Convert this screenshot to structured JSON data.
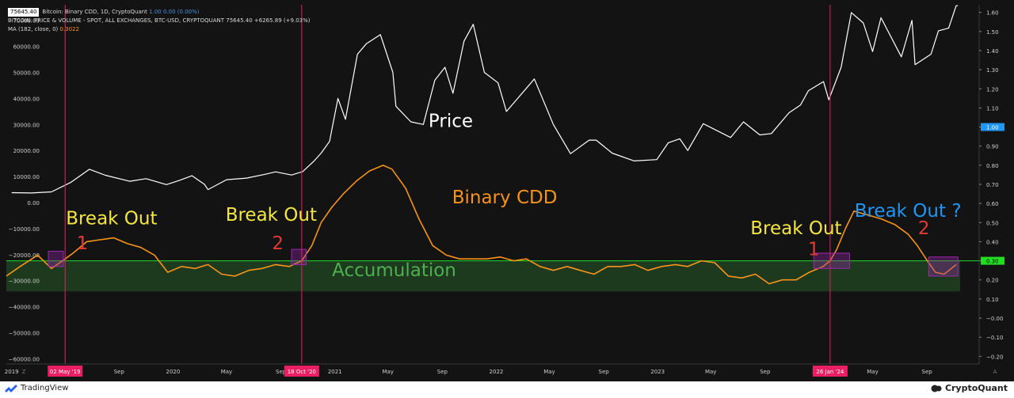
{
  "header": {
    "current_price": "75645.40",
    "line1": "Bitcoin: Binary CDD, 1D, CryptoQuant",
    "line1_vals": "1.00  0.00 (0.00%)",
    "line2": "BITCOIN: PRICE & VOLUME - SPOT, ALL EXCHANGES, BTC-USD, CRYPTOQUANT",
    "line2_vals": "75645.40  +6265.89 (+9.03%)",
    "line3": "MA (182, close, 0)",
    "line3_vals": "0.3022"
  },
  "footer": {
    "left_brand": "TradingView",
    "right_brand": "CryptoQuant",
    "left_corner": "Z",
    "right_corner": "A"
  },
  "colors": {
    "background": "#131313",
    "price_line": "#ffffff",
    "cdd_line": "#f7931a",
    "threshold_line": "#22dd22",
    "accumulation_zone": "#1e3a1e",
    "event_line": "#e91e63",
    "breakout_box": "#9c27b0",
    "yellow_text": "#f5e642",
    "red_text": "#e53935",
    "blue_text": "#2196f3",
    "green_text": "#4caf50"
  },
  "chart_data": {
    "type": "line",
    "left_axis": {
      "ticks": [
        "70000.00",
        "60000.00",
        "50000.00",
        "40000.00",
        "30000.00",
        "20000.00",
        "10000.00",
        "0.00",
        "−10000.00",
        "−20000.00",
        "−30000.00",
        "−40000.00",
        "−50000.00",
        "−60000.00"
      ],
      "ylim": [
        -62000,
        76000
      ]
    },
    "right_axis": {
      "ticks": [
        "1.60",
        "1.50",
        "1.40",
        "1.30",
        "1.20",
        "1.10",
        "1.00",
        "0.90",
        "0.80",
        "0.70",
        "0.60",
        "0.50",
        "0.40",
        "0.30",
        "0.20",
        "0.10",
        "−0.00",
        "−0.10",
        "−0.20"
      ],
      "highlight_current": "1.00",
      "highlight_threshold": "0.30",
      "ylim": [
        -0.24,
        1.64
      ]
    },
    "x_axis": {
      "labels": [
        "2019",
        "May",
        "Sep",
        "2020",
        "May",
        "Sep",
        "2021",
        "May",
        "Sep",
        "2022",
        "May",
        "Sep",
        "2023",
        "May",
        "Sep",
        "2024",
        "May",
        "Sep"
      ],
      "dates": [
        "2019-01-01",
        "2019-05-01",
        "2019-09-01",
        "2020-01-01",
        "2020-05-01",
        "2020-09-01",
        "2021-01-01",
        "2021-05-01",
        "2021-09-01",
        "2022-01-01",
        "2022-05-01",
        "2022-09-01",
        "2023-01-01",
        "2023-05-01",
        "2023-09-01",
        "2024-01-01",
        "2024-05-01",
        "2024-09-01"
      ],
      "range": [
        "2018-12-20",
        "2024-12-28"
      ]
    },
    "event_markers": [
      {
        "label": "02 May '19",
        "date": "2019-05-02"
      },
      {
        "label": "18 Oct '20",
        "date": "2020-10-18"
      },
      {
        "label": "26 Jan '24",
        "date": "2024-01-26"
      }
    ],
    "threshold": {
      "value": 0.3,
      "label": "0.30"
    },
    "accumulation_zone": {
      "from": 0.14,
      "to": 0.3,
      "start": "2018-12-20",
      "end": "2024-11-15"
    },
    "series": [
      {
        "name": "Price",
        "axis": "left",
        "x": [
          "2019-01-01",
          "2019-02-15",
          "2019-04-01",
          "2019-05-15",
          "2019-06-26",
          "2019-08-01",
          "2019-09-25",
          "2019-11-01",
          "2019-12-17",
          "2020-01-15",
          "2020-02-13",
          "2020-03-12",
          "2020-03-20",
          "2020-05-01",
          "2020-06-15",
          "2020-07-28",
          "2020-08-20",
          "2020-09-25",
          "2020-10-20",
          "2020-11-15",
          "2020-12-01",
          "2020-12-20",
          "2021-01-08",
          "2021-01-25",
          "2021-02-21",
          "2021-03-13",
          "2021-04-14",
          "2021-05-12",
          "2021-05-19",
          "2021-06-22",
          "2021-07-20",
          "2021-08-15",
          "2021-09-07",
          "2021-09-25",
          "2021-10-20",
          "2021-11-10",
          "2021-12-05",
          "2022-01-05",
          "2022-01-24",
          "2022-03-28",
          "2022-05-10",
          "2022-06-18",
          "2022-07-30",
          "2022-08-15",
          "2022-09-20",
          "2022-11-09",
          "2022-12-30",
          "2023-01-25",
          "2023-02-20",
          "2023-03-10",
          "2023-04-14",
          "2023-06-15",
          "2023-07-14",
          "2023-08-20",
          "2023-09-15",
          "2023-10-25",
          "2023-11-20",
          "2023-12-08",
          "2024-01-11",
          "2024-01-23",
          "2024-02-20",
          "2024-03-14",
          "2024-04-10",
          "2024-05-01",
          "2024-05-20",
          "2024-07-05",
          "2024-07-29",
          "2024-08-05",
          "2024-09-10",
          "2024-09-27",
          "2024-10-20",
          "2024-11-06",
          "2024-11-10"
        ],
        "values": [
          3800,
          3700,
          4100,
          7800,
          12800,
          10500,
          8200,
          9200,
          6900,
          8500,
          10300,
          7000,
          5000,
          8800,
          9400,
          10900,
          11800,
          10600,
          11900,
          16000,
          19000,
          23500,
          40000,
          32000,
          57000,
          61000,
          64500,
          50000,
          37000,
          31000,
          30000,
          47000,
          52000,
          42000,
          62000,
          68500,
          50000,
          46000,
          35000,
          47500,
          30000,
          18800,
          24000,
          24000,
          19000,
          16000,
          16500,
          23000,
          24500,
          20000,
          30300,
          25000,
          31000,
          26000,
          26500,
          34500,
          37500,
          43000,
          46500,
          39500,
          52000,
          73000,
          69000,
          58000,
          71000,
          56000,
          70000,
          53000,
          57000,
          66000,
          67000,
          75645,
          75645
        ]
      },
      {
        "name": "Binary CDD",
        "axis": "right",
        "x": [
          "2018-12-20",
          "2019-01-20",
          "2019-03-01",
          "2019-04-01",
          "2019-04-20",
          "2019-05-02",
          "2019-05-20",
          "2019-06-20",
          "2019-07-20",
          "2019-08-20",
          "2019-09-20",
          "2019-10-20",
          "2019-11-20",
          "2019-12-20",
          "2020-01-20",
          "2020-02-20",
          "2020-03-20",
          "2020-04-20",
          "2020-05-20",
          "2020-06-20",
          "2020-07-20",
          "2020-08-20",
          "2020-09-20",
          "2020-10-18",
          "2020-11-10",
          "2020-12-01",
          "2020-12-25",
          "2021-01-20",
          "2021-02-20",
          "2021-03-20",
          "2021-04-20",
          "2021-05-10",
          "2021-06-10",
          "2021-07-10",
          "2021-08-10",
          "2021-09-10",
          "2021-10-10",
          "2021-11-10",
          "2021-12-10",
          "2022-01-10",
          "2022-02-10",
          "2022-03-10",
          "2022-04-10",
          "2022-05-10",
          "2022-06-10",
          "2022-07-10",
          "2022-08-10",
          "2022-09-10",
          "2022-10-10",
          "2022-11-10",
          "2022-12-10",
          "2023-01-10",
          "2023-02-10",
          "2023-03-10",
          "2023-04-10",
          "2023-05-10",
          "2023-06-10",
          "2023-07-10",
          "2023-08-10",
          "2023-09-10",
          "2023-10-10",
          "2023-11-10",
          "2023-12-10",
          "2024-01-10",
          "2024-01-26",
          "2024-02-10",
          "2024-03-01",
          "2024-03-20",
          "2024-04-20",
          "2024-05-20",
          "2024-06-20",
          "2024-07-20",
          "2024-08-10",
          "2024-08-30",
          "2024-09-20",
          "2024-10-10",
          "2024-11-06"
        ],
        "values": [
          0.22,
          0.27,
          0.33,
          0.26,
          0.29,
          0.31,
          0.34,
          0.4,
          0.41,
          0.42,
          0.39,
          0.37,
          0.33,
          0.24,
          0.27,
          0.26,
          0.28,
          0.23,
          0.22,
          0.25,
          0.26,
          0.28,
          0.27,
          0.3,
          0.38,
          0.5,
          0.58,
          0.65,
          0.72,
          0.77,
          0.8,
          0.78,
          0.68,
          0.52,
          0.38,
          0.33,
          0.31,
          0.31,
          0.31,
          0.32,
          0.3,
          0.31,
          0.27,
          0.25,
          0.27,
          0.25,
          0.23,
          0.27,
          0.27,
          0.28,
          0.25,
          0.27,
          0.28,
          0.27,
          0.3,
          0.29,
          0.22,
          0.21,
          0.23,
          0.18,
          0.2,
          0.2,
          0.24,
          0.27,
          0.3,
          0.36,
          0.47,
          0.56,
          0.54,
          0.52,
          0.49,
          0.44,
          0.38,
          0.31,
          0.24,
          0.23,
          0.28
        ]
      }
    ],
    "annotations": [
      {
        "text": "Price",
        "color": "white",
        "date": "2021-09-20",
        "value_left": 29000,
        "size": "large"
      },
      {
        "text": "Binary CDD",
        "color": "orange",
        "date": "2022-01-20",
        "value_right": 0.6,
        "size": "large"
      },
      {
        "text": "Accumulation",
        "color": "green",
        "date": "2021-05-15",
        "value_right": 0.22,
        "size": "large"
      },
      {
        "text": "Break Out",
        "color": "yellow",
        "date": "2019-08-15",
        "value_right": 0.49,
        "size": "large"
      },
      {
        "text": "1",
        "color": "red",
        "date": "2019-06-10",
        "value_right": 0.36,
        "size": "large"
      },
      {
        "text": "Break Out",
        "color": "yellow",
        "date": "2020-08-10",
        "value_right": 0.51,
        "size": "large"
      },
      {
        "text": "2",
        "color": "red",
        "date": "2020-08-25",
        "value_right": 0.36,
        "size": "large"
      },
      {
        "text": "Break Out",
        "color": "yellow",
        "date": "2023-11-10",
        "value_right": 0.44,
        "size": "large"
      },
      {
        "text": "1",
        "color": "red",
        "date": "2023-12-20",
        "value_right": 0.33,
        "size": "large"
      },
      {
        "text": "Break Out ?",
        "color": "blue",
        "date": "2024-07-20",
        "value_right": 0.53,
        "size": "large"
      },
      {
        "text": "2",
        "color": "red",
        "date": "2024-08-25",
        "value_right": 0.44,
        "size": "large"
      }
    ],
    "breakout_boxes": [
      {
        "start": "2019-03-25",
        "end": "2019-04-28",
        "from": 0.27,
        "to": 0.35
      },
      {
        "start": "2020-09-25",
        "end": "2020-10-28",
        "from": 0.28,
        "to": 0.36
      },
      {
        "start": "2023-12-20",
        "end": "2024-03-10",
        "from": 0.26,
        "to": 0.34
      },
      {
        "start": "2024-09-05",
        "end": "2024-11-10",
        "from": 0.22,
        "to": 0.32
      }
    ],
    "grid": false,
    "legend": "none"
  }
}
